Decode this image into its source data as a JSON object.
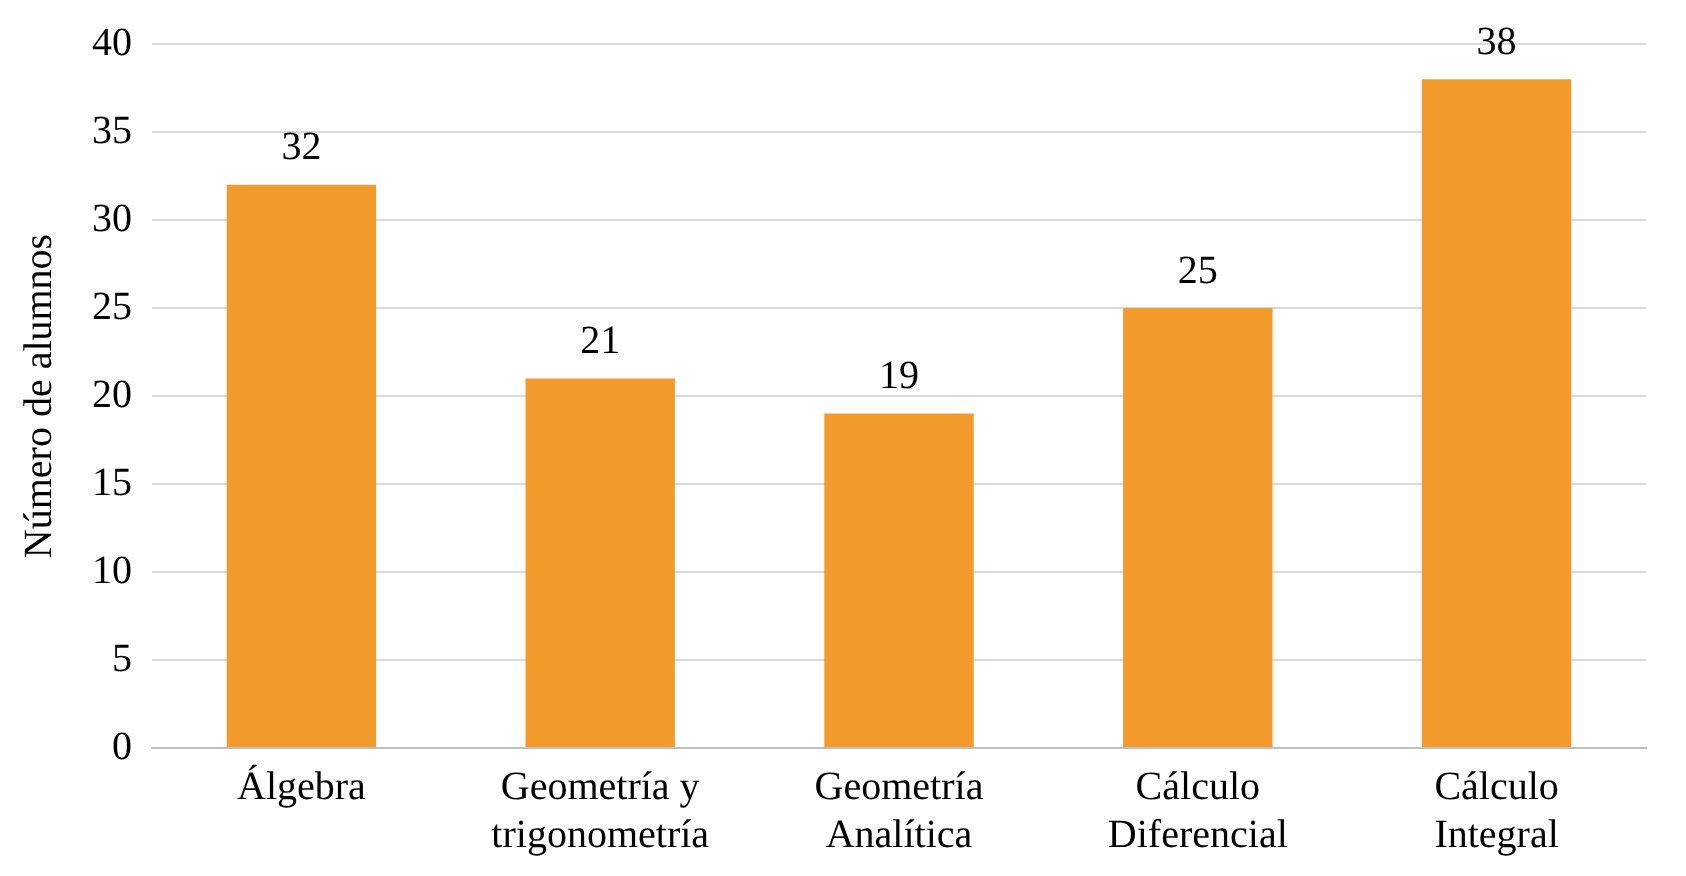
{
  "chart_data": {
    "type": "bar",
    "ylabel": "Número de alumnos",
    "categories": [
      "Álgebra",
      "Geometría y trigonometría",
      "Geometría Analítica",
      "Cálculo Diferencial",
      "Cálculo Integral"
    ],
    "values": [
      32,
      21,
      19,
      25,
      38
    ],
    "color": "#f39a2c",
    "ylim": [
      0,
      40
    ],
    "yticks": [
      0,
      5,
      10,
      15,
      20,
      25,
      30,
      35,
      40
    ],
    "grid": "y",
    "data_labels": true,
    "legend": false
  }
}
